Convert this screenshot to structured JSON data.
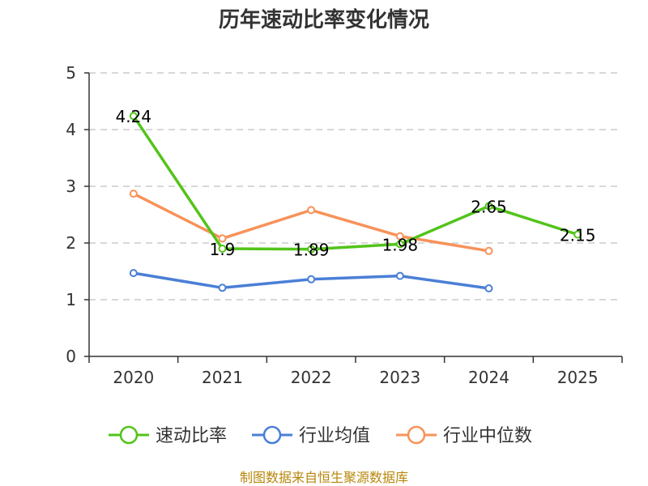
{
  "chart_data": {
    "type": "line",
    "title": "历年速动比率变化情况",
    "categories": [
      "2020",
      "2021",
      "2022",
      "2023",
      "2024",
      "2025"
    ],
    "ylim": [
      0,
      5
    ],
    "yticks": [
      0,
      1,
      2,
      3,
      4,
      5
    ],
    "grid": true,
    "legend_position": "bottom",
    "series": [
      {
        "name": "速动比率",
        "color": "#52c41a",
        "values": [
          4.24,
          1.9,
          1.89,
          1.98,
          2.65,
          2.15
        ],
        "labels": [
          "4.24",
          "1.9",
          "1.89",
          "1.98",
          "2.65",
          "2.15"
        ]
      },
      {
        "name": "行业均值",
        "color": "#4a7fd6",
        "values": [
          1.47,
          1.21,
          1.36,
          1.42,
          1.2,
          null
        ]
      },
      {
        "name": "行业中位数",
        "color": "#f7925a",
        "values": [
          2.87,
          2.08,
          2.58,
          2.12,
          1.86,
          null
        ]
      }
    ]
  },
  "source_text": "制图数据来自恒生聚源数据库"
}
